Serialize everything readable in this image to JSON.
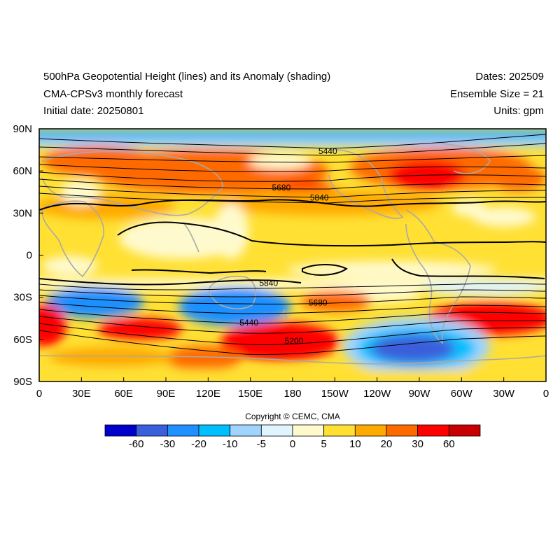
{
  "header": {
    "title_line1": "500hPa Geopotential Height (lines) and its Anomaly (shading)",
    "title_line2": "CMA-CPSv3 monthly forecast",
    "title_line3": "Initial date: 20250801",
    "dates": "Dates: 202509",
    "ensemble": "Ensemble Size = 21",
    "units": "Units: gpm"
  },
  "axes": {
    "lat_ticks": [
      "90N",
      "60N",
      "30N",
      "0",
      "30S",
      "60S",
      "90S"
    ],
    "lon_ticks": [
      "0",
      "30E",
      "60E",
      "90E",
      "120E",
      "150E",
      "180",
      "150W",
      "120W",
      "90W",
      "60W",
      "30W",
      "0"
    ]
  },
  "contour_labels": [
    {
      "text": "5440",
      "lon": 205,
      "lat": 74
    },
    {
      "text": "5680",
      "lon": 172,
      "lat": 48
    },
    {
      "text": "5840",
      "lon": 199,
      "lat": 41
    },
    {
      "text": "5840",
      "lon": 163,
      "lat": -20
    },
    {
      "text": "5680",
      "lon": 198,
      "lat": -34
    },
    {
      "text": "5440",
      "lon": 149,
      "lat": -48
    },
    {
      "text": "5200",
      "lon": 181,
      "lat": -61
    }
  ],
  "copyright": "Copyright © CEMC, CMA",
  "colorbar": {
    "colors": [
      "#0000cd",
      "#3a5fdc",
      "#1e90ff",
      "#00bfff",
      "#a0d4ff",
      "#e0f4ff",
      "#fffacd",
      "#ffe033",
      "#ffaa00",
      "#ff6a00",
      "#ff0000",
      "#c80000"
    ],
    "labels": [
      "-60",
      "-30",
      "-20",
      "-10",
      "-5",
      "0",
      "5",
      "10",
      "20",
      "30",
      "60"
    ]
  }
}
